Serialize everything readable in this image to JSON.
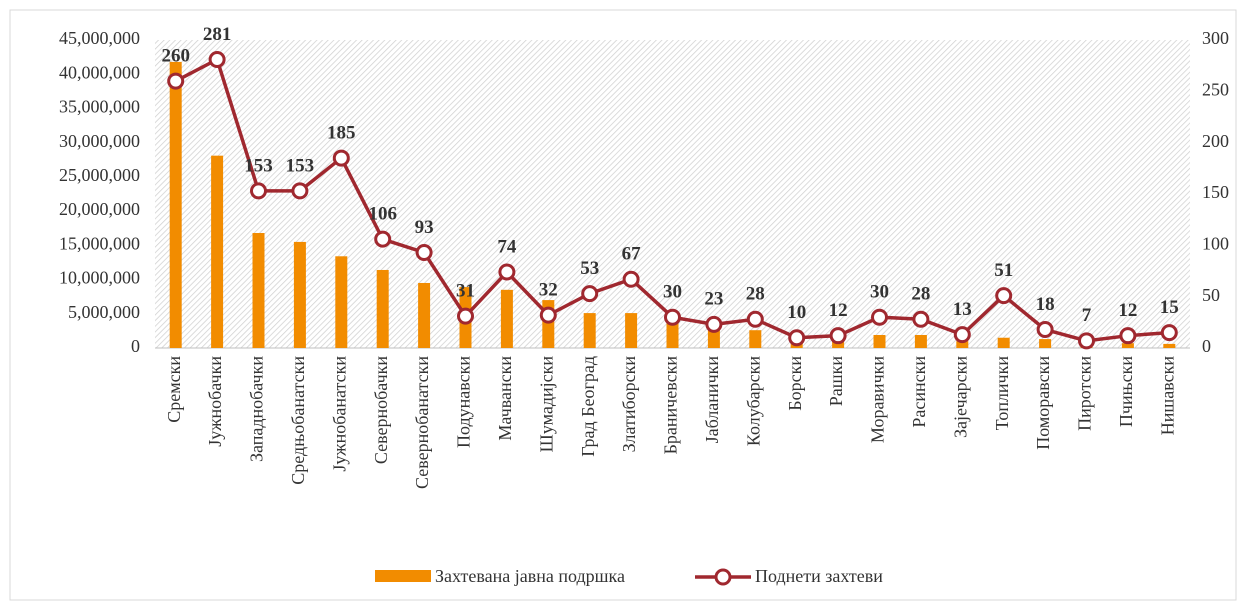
{
  "chart_data": {
    "type": "bar_line",
    "categories": [
      "Сремски",
      "Јужнобачки",
      "Западнобачки",
      "Средњобанатски",
      "Јужнобанатски",
      "Севернобачки",
      "Севернобанатски",
      "Подунавски",
      "Мачвански",
      "Шумадијски",
      "Град Београд",
      "Златиборски",
      "Браничевски",
      "Јабланички",
      "Колубарски",
      "Борски",
      "Рашки",
      "Моравички",
      "Расински",
      "Зајечарски",
      "Топлички",
      "Поморавски",
      "Пиротски",
      "Пчињски",
      "Нишавски"
    ],
    "series": [
      {
        "name": "Захтевана јавна подршка",
        "type": "bar",
        "color": "#f28c00",
        "values": [
          41800000,
          28100000,
          16800000,
          15500000,
          13400000,
          11400000,
          9500000,
          8900000,
          8500000,
          7000000,
          5100000,
          5100000,
          3700000,
          3000000,
          2600000,
          900000,
          1000000,
          1900000,
          1900000,
          1000000,
          1500000,
          1300000,
          400000,
          700000,
          600000
        ]
      },
      {
        "name": "Поднети захтеви",
        "type": "line",
        "axis": "y2",
        "color": "#a0282f",
        "values": [
          260,
          281,
          153,
          153,
          185,
          106,
          93,
          31,
          74,
          32,
          53,
          67,
          30,
          23,
          28,
          10,
          12,
          30,
          28,
          13,
          51,
          18,
          7,
          12,
          15
        ]
      }
    ],
    "ylim": [
      0,
      45000000
    ],
    "yticks": [
      0,
      {
        "value": 5000000,
        "label": "5,000,000"
      },
      {
        "value": 10000000,
        "label": "10,000,000"
      },
      {
        "value": 15000000,
        "label": "15,000,000"
      },
      {
        "value": 20000000,
        "label": "20,000,000"
      },
      {
        "value": 25000000,
        "label": "25,000,000"
      },
      {
        "value": 30000000,
        "label": "30,000,000"
      },
      {
        "value": 35000000,
        "label": "35,000,000"
      },
      {
        "value": 40000000,
        "label": "40,000,000"
      },
      {
        "value": 45000000,
        "label": "45,000,000"
      }
    ],
    "y2lim": [
      0,
      300
    ],
    "y2ticks": [
      0,
      50,
      100,
      150,
      200,
      250,
      300
    ],
    "legend": "bottom"
  }
}
